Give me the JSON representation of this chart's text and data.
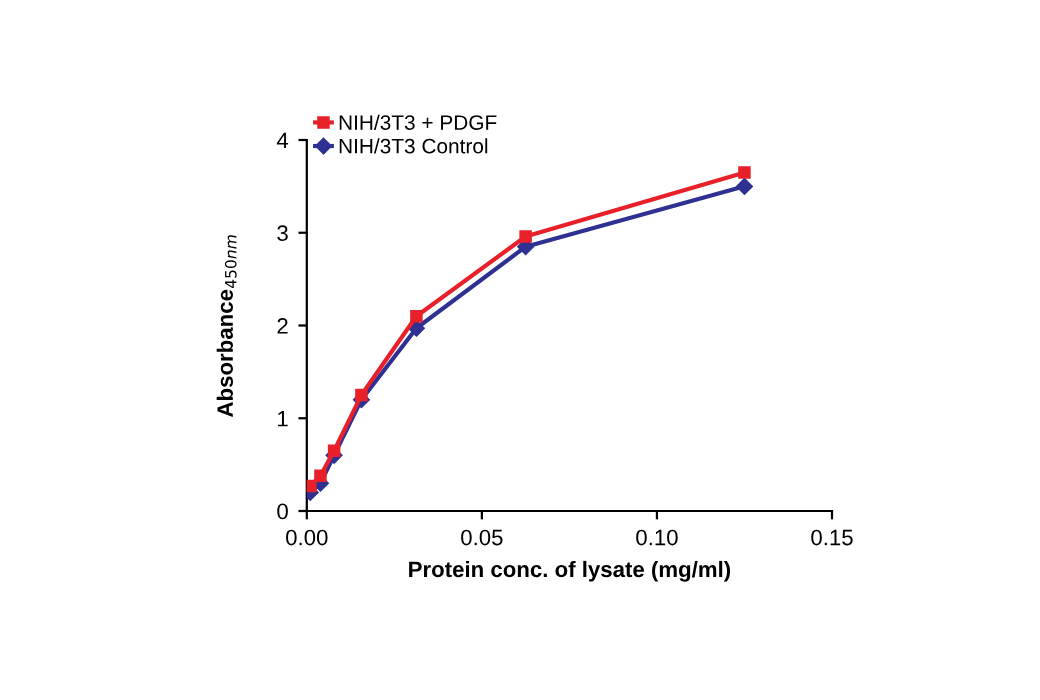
{
  "chart_data": {
    "type": "line",
    "xlabel": "Protein conc. of lysate (mg/ml)",
    "ylabel": "Absorbance$_{450nm}$",
    "x": [
      0.00098,
      0.0039,
      0.0078,
      0.0156,
      0.0313,
      0.0625,
      0.125
    ],
    "series": [
      {
        "name": "NIH/3T3 + PDGF",
        "color": "#e8202a",
        "marker": "square",
        "values": [
          0.27,
          0.38,
          0.65,
          1.25,
          2.1,
          2.96,
          3.65
        ]
      },
      {
        "name": "NIH/3T3 Control",
        "color": "#2e3192",
        "marker": "diamond",
        "values": [
          0.2,
          0.3,
          0.6,
          1.2,
          1.97,
          2.85,
          3.5
        ]
      }
    ],
    "xlim": [
      0,
      0.15
    ],
    "xticks": [
      {
        "value": 0,
        "label": "0.00"
      },
      0.05,
      {
        "value": 0.1,
        "label": "0.10"
      },
      0.15
    ],
    "ylim": [
      0,
      4
    ],
    "yticks": [
      0,
      1,
      2,
      3,
      4
    ],
    "grid": false,
    "legend": "top left",
    "line_style": "solid"
  }
}
